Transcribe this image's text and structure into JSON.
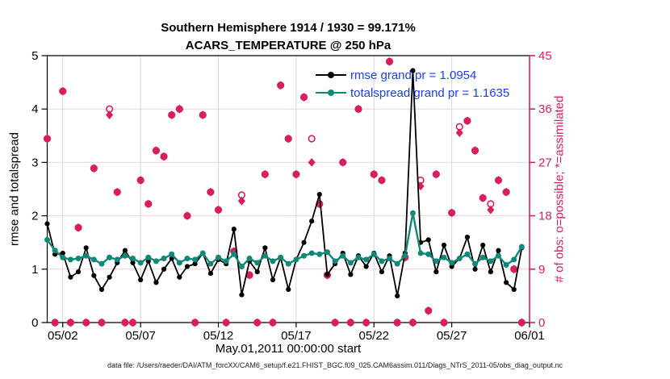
{
  "title": {
    "line1": "Southern Hemisphere 1914 / 1930 = 99.171%",
    "line2": "ACARS_TEMPERATURE @ 250 hPa"
  },
  "legend": {
    "items": [
      {
        "label": "rmse grand pr = 1.0954",
        "series": "rmse",
        "color": "#000000"
      },
      {
        "label": "totalspread grand pr = 1.1635",
        "series": "totalspread",
        "color": "#0e8878"
      }
    ]
  },
  "xlabel": "May.01,2011 00:00:00 start",
  "footer": "data file: /Users/raeder/DAI/ATM_forcXX/CAM6_setup/f.e21.FHIST_BGC.f09_025.CAM6assim.011/Diags_NTrS_2011-05/obs_diag_output.nc",
  "colors": {
    "obs": "#d81e5b",
    "teal": "#0e8878",
    "black": "#000000",
    "grid_vertical": "#d6d6d6",
    "grid_horizontal": "#f4cfdb",
    "legend_text": "#1a3ef5"
  },
  "chart_data": {
    "type": "line",
    "title": "Southern Hemisphere 1914 / 1930 = 99.171% | ACARS_TEMPERATURE @ 250 hPa",
    "x_start": "2011-05-01 00:00:00",
    "x_step_days": 0.5,
    "x_range_days": [
      0,
      31
    ],
    "x_tick_days": [
      1,
      6,
      11,
      16,
      21,
      26,
      31
    ],
    "x_tick_labels": [
      "05/02",
      "05/07",
      "05/12",
      "05/17",
      "05/22",
      "05/27",
      "06/01"
    ],
    "xlabel": "May.01,2011 00:00:00 start",
    "left_axis": {
      "label": "rmse and totalspread",
      "range": [
        0,
        5
      ],
      "ticks": [
        0,
        1,
        2,
        3,
        4,
        5
      ]
    },
    "right_axis": {
      "label": "# of obs: o=possible; *=assimilated",
      "range": [
        0,
        45
      ],
      "ticks": [
        0,
        9,
        18,
        27,
        36,
        45
      ]
    },
    "grand_means": {
      "rmse": 1.0954,
      "totalspread": 1.1635
    },
    "series": [
      {
        "name": "rmse",
        "axis": "left",
        "style": "line-dot",
        "color": "#000000",
        "values": [
          1.85,
          1.28,
          1.3,
          0.85,
          0.95,
          1.4,
          0.88,
          0.62,
          0.85,
          1.12,
          1.35,
          1.12,
          0.8,
          1.15,
          0.75,
          1.0,
          1.2,
          0.85,
          1.05,
          1.1,
          1.3,
          0.92,
          1.18,
          1.1,
          1.75,
          0.52,
          1.15,
          0.95,
          1.4,
          0.8,
          1.22,
          0.62,
          1.18,
          1.5,
          1.9,
          2.4,
          0.9,
          1.1,
          1.3,
          0.9,
          1.25,
          1.05,
          1.3,
          0.95,
          1.25,
          0.5,
          1.3,
          4.72,
          1.5,
          1.55,
          0.95,
          1.45,
          1.05,
          1.2,
          1.6,
          1.0,
          1.45,
          0.95,
          1.35,
          0.75,
          0.62,
          1.4
        ]
      },
      {
        "name": "totalspread",
        "axis": "left",
        "style": "line-dot",
        "color": "#0e8878",
        "values": [
          1.55,
          1.35,
          1.22,
          1.18,
          1.2,
          1.25,
          1.18,
          1.1,
          1.22,
          1.18,
          1.25,
          1.2,
          1.12,
          1.22,
          1.15,
          1.2,
          1.28,
          1.12,
          1.2,
          1.18,
          1.3,
          1.1,
          1.22,
          1.15,
          1.28,
          1.05,
          1.2,
          1.12,
          1.25,
          1.15,
          1.22,
          1.1,
          1.18,
          1.25,
          1.3,
          1.28,
          1.32,
          1.15,
          1.25,
          1.12,
          1.22,
          1.18,
          1.28,
          1.15,
          1.2,
          1.1,
          1.25,
          2.05,
          1.3,
          1.28,
          1.15,
          1.22,
          1.12,
          1.2,
          1.28,
          1.1,
          1.22,
          1.15,
          1.25,
          1.08,
          1.18,
          1.42
        ]
      },
      {
        "name": "possible",
        "axis": "right",
        "style": "open-circle",
        "color": "#d81e5b",
        "values": [
          31,
          0,
          39,
          0,
          16,
          0,
          26,
          0,
          36,
          22,
          0,
          0,
          24,
          20,
          29,
          28,
          35,
          36,
          18,
          0,
          35,
          22,
          19,
          0,
          12,
          21.5,
          8,
          0,
          25,
          0,
          40,
          31,
          25,
          38,
          31,
          20,
          8,
          0,
          27,
          0,
          36,
          0,
          25,
          24,
          44,
          0,
          11,
          0,
          24,
          2,
          25,
          0,
          18.5,
          33,
          34,
          29,
          21,
          20,
          24,
          22,
          9,
          0
        ]
      },
      {
        "name": "assimilated",
        "axis": "right",
        "style": "asterisk",
        "color": "#d81e5b",
        "values": [
          31,
          0,
          39,
          0,
          16,
          0,
          26,
          0,
          35,
          22,
          0,
          0,
          24,
          20,
          29,
          28,
          35,
          36,
          18,
          0,
          35,
          22,
          19,
          0,
          12,
          20.5,
          8,
          0,
          25,
          0,
          40,
          31,
          25,
          38,
          27,
          20,
          8,
          0,
          27,
          0,
          36,
          0,
          25,
          24,
          44,
          0,
          11,
          0,
          23,
          2,
          25,
          0,
          18.5,
          32,
          34,
          29,
          21,
          19,
          24,
          22,
          9,
          0
        ]
      }
    ]
  }
}
